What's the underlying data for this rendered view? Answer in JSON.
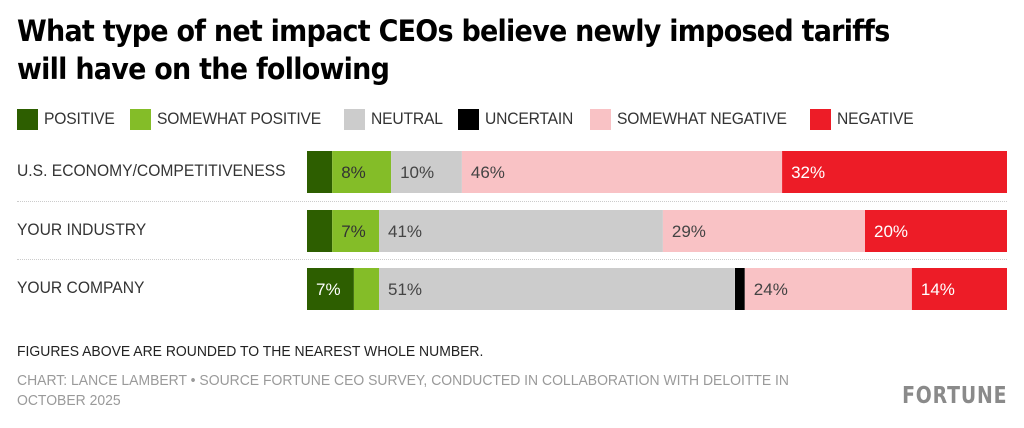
{
  "chart_data": {
    "type": "bar",
    "orientation": "horizontal",
    "stacked": true,
    "normalized": true,
    "title": "What type of net impact CEOs believe newly imposed tariffs will have on the following",
    "xlabel": "",
    "ylabel": "",
    "xlim": [
      0,
      100
    ],
    "grid": false,
    "legend_position": "top-left",
    "categories": [
      "U.S. ECONOMY/COMPETITIVENESS",
      "YOUR INDUSTRY",
      "YOUR COMPANY"
    ],
    "series": [
      {
        "name": "POSITIVE",
        "color": "#2d5e00",
        "label_color": "#ffffff",
        "values": [
          3.6,
          3.6,
          6.7
        ],
        "labels": [
          "",
          "",
          "7%"
        ]
      },
      {
        "name": "SOMEWHAT POSITIVE",
        "color": "#84bd28",
        "label_color": "#333333",
        "values": [
          8.4,
          6.7,
          3.6
        ],
        "labels": [
          "8%",
          "7%",
          ""
        ]
      },
      {
        "name": "NEUTRAL",
        "color": "#cccccc",
        "label_color": "#444444",
        "values": [
          10.1,
          40.6,
          50.9
        ],
        "labels": [
          "10%",
          "41%",
          "51%"
        ]
      },
      {
        "name": "UNCERTAIN",
        "color": "#000000",
        "label_color": "#ffffff",
        "values": [
          0,
          0,
          1.4
        ],
        "labels": [
          "",
          "",
          ""
        ]
      },
      {
        "name": "SOMEWHAT NEGATIVE",
        "color": "#f9c2c5",
        "label_color": "#444444",
        "values": [
          45.7,
          28.9,
          23.9
        ],
        "labels": [
          "46%",
          "29%",
          "24%"
        ]
      },
      {
        "name": "NEGATIVE",
        "color": "#ed1c27",
        "label_color": "#ffffff",
        "values": [
          32.1,
          20.3,
          13.6
        ],
        "labels": [
          "32%",
          "20%",
          "14%"
        ]
      }
    ],
    "annotations": [
      "FIGURES ABOVE ARE ROUNDED TO THE NEAREST WHOLE NUMBER."
    ]
  },
  "note": "FIGURES ABOVE ARE ROUNDED TO THE NEAREST WHOLE NUMBER.",
  "source": "CHART: LANCE LAMBERT • SOURCE FORTUNE CEO SURVEY, CONDUCTED IN COLLABORATION WITH DELOITTE IN OCTOBER 2025",
  "logo": "FORTUNE"
}
